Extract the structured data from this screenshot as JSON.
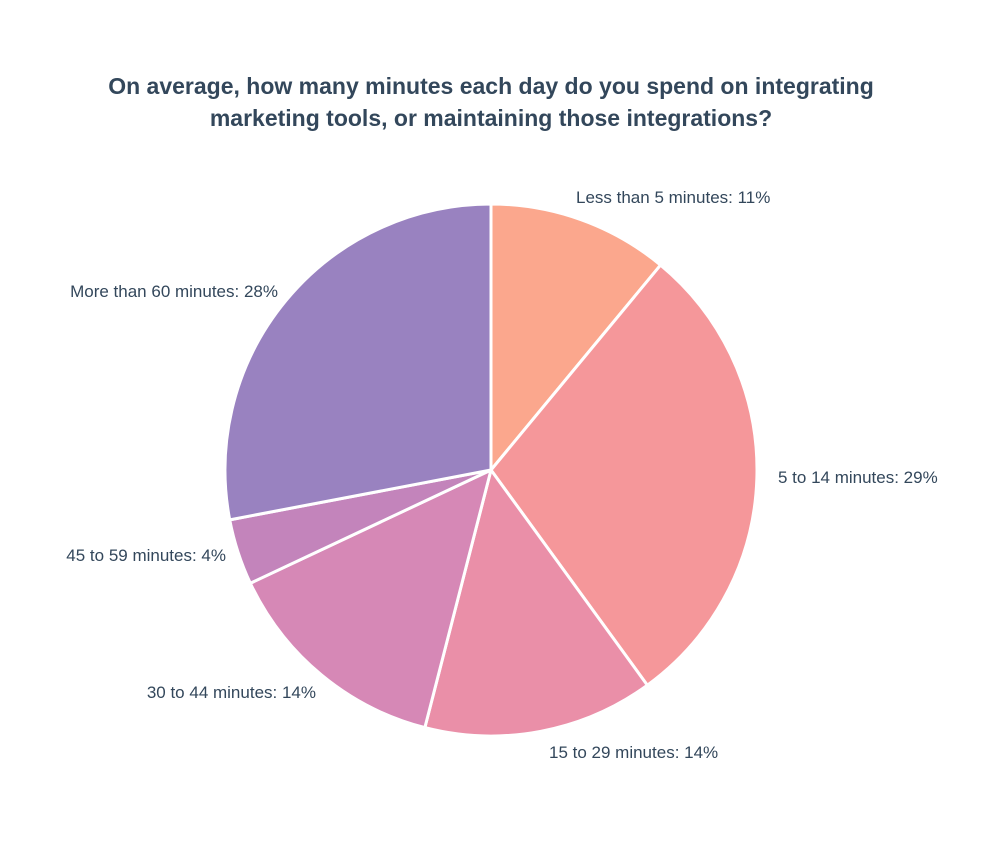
{
  "chart_data": {
    "type": "pie",
    "title_lines": [
      "On average, how many minutes each day do you spend on integrating",
      "marketing tools, or maintaining those integrations?"
    ],
    "slices": [
      {
        "label": "Less than 5 minutes: 11%",
        "category": "Less than 5 minutes",
        "value": 11,
        "color": "#fba78d"
      },
      {
        "label": "5 to 14 minutes: 29%",
        "category": "5 to 14 minutes",
        "value": 29,
        "color": "#f5979a"
      },
      {
        "label": "15 to 29 minutes: 14%",
        "category": "15 to 29 minutes",
        "value": 14,
        "color": "#ea8fa8"
      },
      {
        "label": "30 to 44 minutes: 14%",
        "category": "30 to 44 minutes",
        "value": 14,
        "color": "#d688b6"
      },
      {
        "label": "45 to 59 minutes: 4%",
        "category": "45 to 59 minutes",
        "value": 4,
        "color": "#c384bb"
      },
      {
        "label": "More than 60 minutes: 28%",
        "category": "More than 60 minutes",
        "value": 28,
        "color": "#9982c0"
      }
    ],
    "start_angle": "12 o'clock",
    "direction": "clockwise",
    "legend": "none"
  },
  "colors": {
    "title_text": "#33475b",
    "label_text": "#33475b",
    "slice_border": "#ffffff"
  }
}
